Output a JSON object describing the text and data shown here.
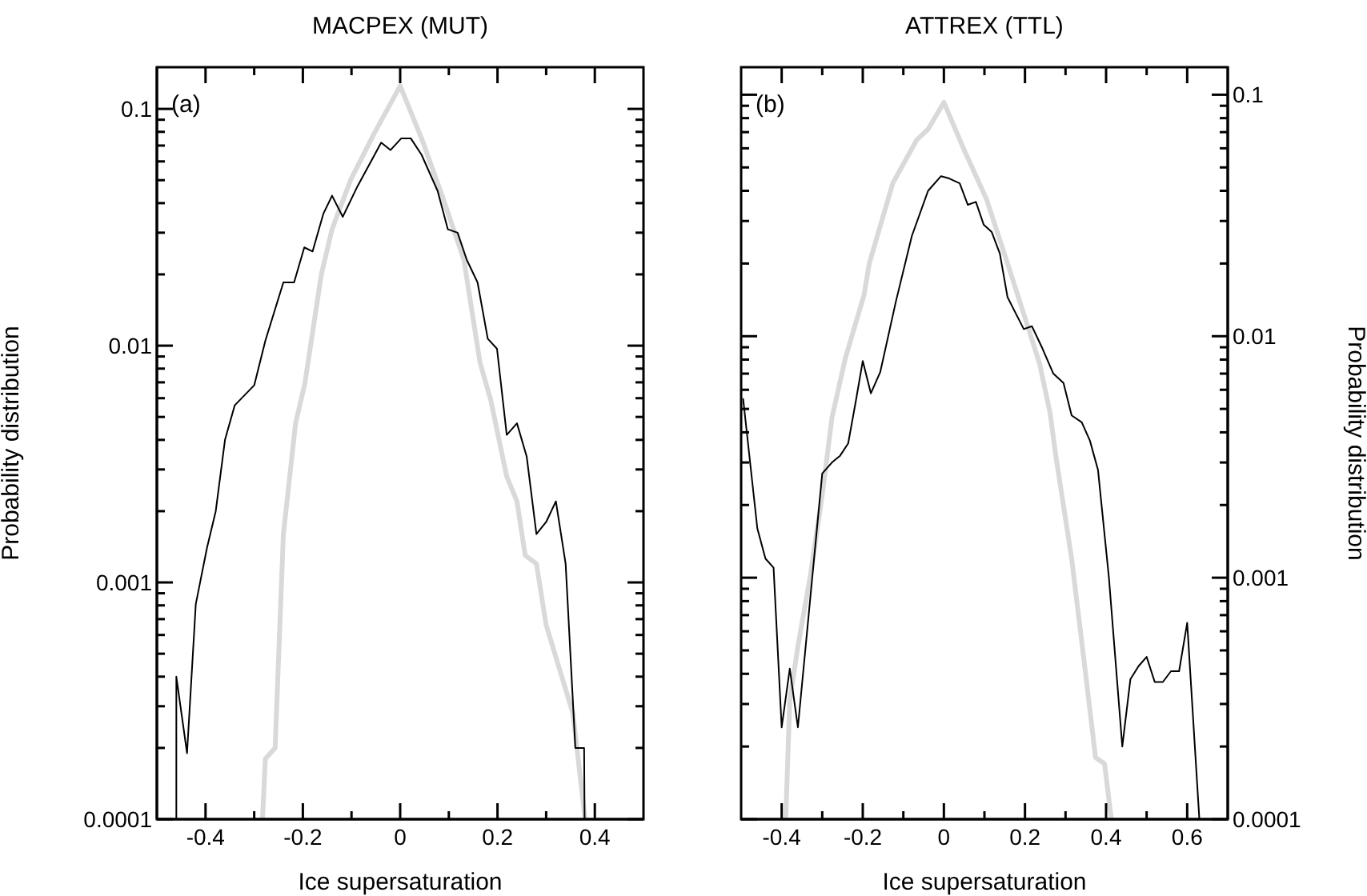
{
  "chart_data": [
    {
      "type": "line",
      "title": "MACPEX (MUT)",
      "xlabel": "Ice supersaturation",
      "ylabel": "Probability distribution",
      "annotations": [
        "(a)"
      ],
      "log": "y",
      "marker": "none",
      "line_style": "solid",
      "xlim": [
        -0.5,
        0.5
      ],
      "xticks": [
        -0.4,
        {
          "value": -0.3,
          "label": null
        },
        -0.2,
        {
          "value": -0.1,
          "label": null
        },
        0,
        {
          "value": 0.1,
          "label": null
        },
        0.2,
        {
          "value": 0.3,
          "label": null
        },
        0.4
      ],
      "ylim": [
        0.0001,
        0.15
      ],
      "yticks": [
        0.0001,
        {
          "value": 0.0002,
          "label": null
        },
        {
          "value": 0.0003,
          "label": null
        },
        {
          "value": 0.0004,
          "label": null
        },
        {
          "value": 0.0005,
          "label": null
        },
        {
          "value": 0.0006,
          "label": null
        },
        {
          "value": 0.0007,
          "label": null
        },
        {
          "value": 0.0008,
          "label": null
        },
        {
          "value": 0.0009,
          "label": null
        },
        0.001,
        {
          "value": 0.002,
          "label": null
        },
        {
          "value": 0.003,
          "label": null
        },
        {
          "value": 0.004,
          "label": null
        },
        {
          "value": 0.005,
          "label": null
        },
        {
          "value": 0.006,
          "label": null
        },
        {
          "value": 0.007,
          "label": null
        },
        {
          "value": 0.008,
          "label": null
        },
        {
          "value": 0.009,
          "label": null
        },
        0.01,
        {
          "value": 0.02,
          "label": null
        },
        {
          "value": 0.03,
          "label": null
        },
        {
          "value": 0.04,
          "label": null
        },
        {
          "value": 0.05,
          "label": null
        },
        {
          "value": 0.06,
          "label": null
        },
        {
          "value": 0.07,
          "label": null
        },
        {
          "value": 0.08,
          "label": null
        },
        {
          "value": 0.09,
          "label": null
        },
        0.1
      ],
      "series": [
        {
          "color": "#d9d9d9",
          "x": [
            -0.283,
            -0.277,
            -0.257,
            -0.24,
            -0.215,
            -0.196,
            -0.162,
            -0.14,
            -0.102,
            -0.053,
            0,
            0.044,
            0.088,
            0.131,
            0.164,
            0.186,
            0.219,
            0.24,
            0.257,
            0.28,
            0.3,
            0.355,
            0.38
          ],
          "values": [
            0.0001,
            0.00018,
            0.0002,
            0.0016,
            0.0047,
            0.0069,
            0.02,
            0.031,
            0.05,
            0.079,
            0.125,
            0.075,
            0.042,
            0.023,
            0.0085,
            0.0059,
            0.0028,
            0.0022,
            0.0013,
            0.0012,
            0.00066,
            0.00028,
            0.0001
          ]
        },
        {
          "color": "#000000",
          "x": [
            -0.46,
            -0.46,
            -0.438,
            -0.42,
            -0.397,
            -0.379,
            -0.36,
            -0.34,
            -0.3,
            -0.277,
            -0.24,
            -0.218,
            -0.197,
            -0.18,
            -0.158,
            -0.14,
            -0.118,
            -0.088,
            -0.039,
            -0.02,
            0.002,
            0.022,
            0.044,
            0.077,
            0.098,
            0.118,
            0.137,
            0.159,
            0.18,
            0.199,
            0.219,
            0.24,
            0.26,
            0.28,
            0.3,
            0.32,
            0.34,
            0.36,
            0.378,
            0.379
          ],
          "values": [
            0.0001,
            0.0004,
            0.00019,
            0.00081,
            0.0014,
            0.002,
            0.004,
            0.0056,
            0.0068,
            0.0105,
            0.0185,
            0.0185,
            0.026,
            0.025,
            0.036,
            0.043,
            0.035,
            0.047,
            0.072,
            0.067,
            0.075,
            0.075,
            0.064,
            0.045,
            0.031,
            0.03,
            0.023,
            0.0185,
            0.0107,
            0.0097,
            0.0042,
            0.0047,
            0.0034,
            0.0016,
            0.0018,
            0.0022,
            0.0012,
            0.0002,
            0.0002,
            0.0001
          ]
        }
      ]
    },
    {
      "type": "line",
      "title": "ATTREX (TTL)",
      "xlabel": "Ice supersaturation",
      "ylabel": "Probability distribution",
      "annotations": [
        "(b)"
      ],
      "log": "y",
      "marker": "none",
      "line_style": "solid",
      "xlim": [
        -0.5,
        0.7
      ],
      "xticks": [
        -0.4,
        {
          "value": -0.3,
          "label": null
        },
        -0.2,
        {
          "value": -0.1,
          "label": null
        },
        0,
        {
          "value": 0.1,
          "label": null
        },
        0.2,
        {
          "value": 0.3,
          "label": null
        },
        0.4,
        {
          "value": 0.5,
          "label": null
        },
        0.6
      ],
      "ylim": [
        0.0001,
        0.13
      ],
      "yticks": [
        0.0001,
        {
          "value": 0.0002,
          "label": null
        },
        {
          "value": 0.0003,
          "label": null
        },
        {
          "value": 0.0004,
          "label": null
        },
        {
          "value": 0.0005,
          "label": null
        },
        {
          "value": 0.0006,
          "label": null
        },
        {
          "value": 0.0007,
          "label": null
        },
        {
          "value": 0.0008,
          "label": null
        },
        {
          "value": 0.0009,
          "label": null
        },
        0.001,
        {
          "value": 0.002,
          "label": null
        },
        {
          "value": 0.003,
          "label": null
        },
        {
          "value": 0.004,
          "label": null
        },
        {
          "value": 0.005,
          "label": null
        },
        {
          "value": 0.006,
          "label": null
        },
        {
          "value": 0.007,
          "label": null
        },
        {
          "value": 0.008,
          "label": null
        },
        {
          "value": 0.009,
          "label": null
        },
        0.01,
        {
          "value": 0.02,
          "label": null
        },
        {
          "value": 0.03,
          "label": null
        },
        {
          "value": 0.04,
          "label": null
        },
        {
          "value": 0.05,
          "label": null
        },
        {
          "value": 0.06,
          "label": null
        },
        {
          "value": 0.07,
          "label": null
        },
        {
          "value": 0.08,
          "label": null
        },
        {
          "value": 0.09,
          "label": null
        },
        0.1
      ],
      "series": [
        {
          "color": "#d9d9d9",
          "x": [
            -0.39,
            -0.38,
            -0.36,
            -0.33,
            -0.3,
            -0.276,
            -0.243,
            -0.197,
            -0.184,
            -0.126,
            -0.067,
            -0.039,
            0,
            0.052,
            0.105,
            0.157,
            0.203,
            0.236,
            0.262,
            0.276,
            0.315,
            0.348,
            0.374,
            0.396,
            0.413
          ],
          "values": [
            0.0001,
            0.00031,
            0.00052,
            0.001,
            0.0022,
            0.0046,
            0.0081,
            0.0148,
            0.02,
            0.043,
            0.065,
            0.072,
            0.093,
            0.058,
            0.037,
            0.02,
            0.0115,
            0.0077,
            0.0048,
            0.0032,
            0.0012,
            0.00042,
            0.00018,
            0.00017,
            0.0001
          ]
        },
        {
          "color": "#000000",
          "x": [
            -0.495,
            -0.46,
            -0.44,
            -0.42,
            -0.4,
            -0.38,
            -0.36,
            -0.3,
            -0.276,
            -0.256,
            -0.236,
            -0.217,
            -0.2,
            -0.18,
            -0.157,
            -0.118,
            -0.079,
            -0.039,
            -0.007,
            0.013,
            0.039,
            0.059,
            0.079,
            0.098,
            0.118,
            0.138,
            0.157,
            0.197,
            0.217,
            0.243,
            0.27,
            0.295,
            0.315,
            0.34,
            0.36,
            0.38,
            0.407,
            0.44,
            0.46,
            0.48,
            0.5,
            0.52,
            0.54,
            0.56,
            0.58,
            0.6,
            0.63
          ],
          "values": [
            0.0055,
            0.0016,
            0.0012,
            0.0011,
            0.00024,
            0.00042,
            0.00024,
            0.0027,
            0.003,
            0.0032,
            0.0036,
            0.0054,
            0.0079,
            0.0058,
            0.0071,
            0.014,
            0.026,
            0.04,
            0.046,
            0.045,
            0.043,
            0.035,
            0.036,
            0.029,
            0.027,
            0.022,
            0.0145,
            0.0107,
            0.011,
            0.0089,
            0.007,
            0.0064,
            0.0047,
            0.0044,
            0.0037,
            0.0028,
            0.001,
            0.0002,
            0.00038,
            0.00043,
            0.00047,
            0.00037,
            0.00037,
            0.00041,
            0.00041,
            0.00065,
            0.0001
          ]
        }
      ]
    }
  ]
}
